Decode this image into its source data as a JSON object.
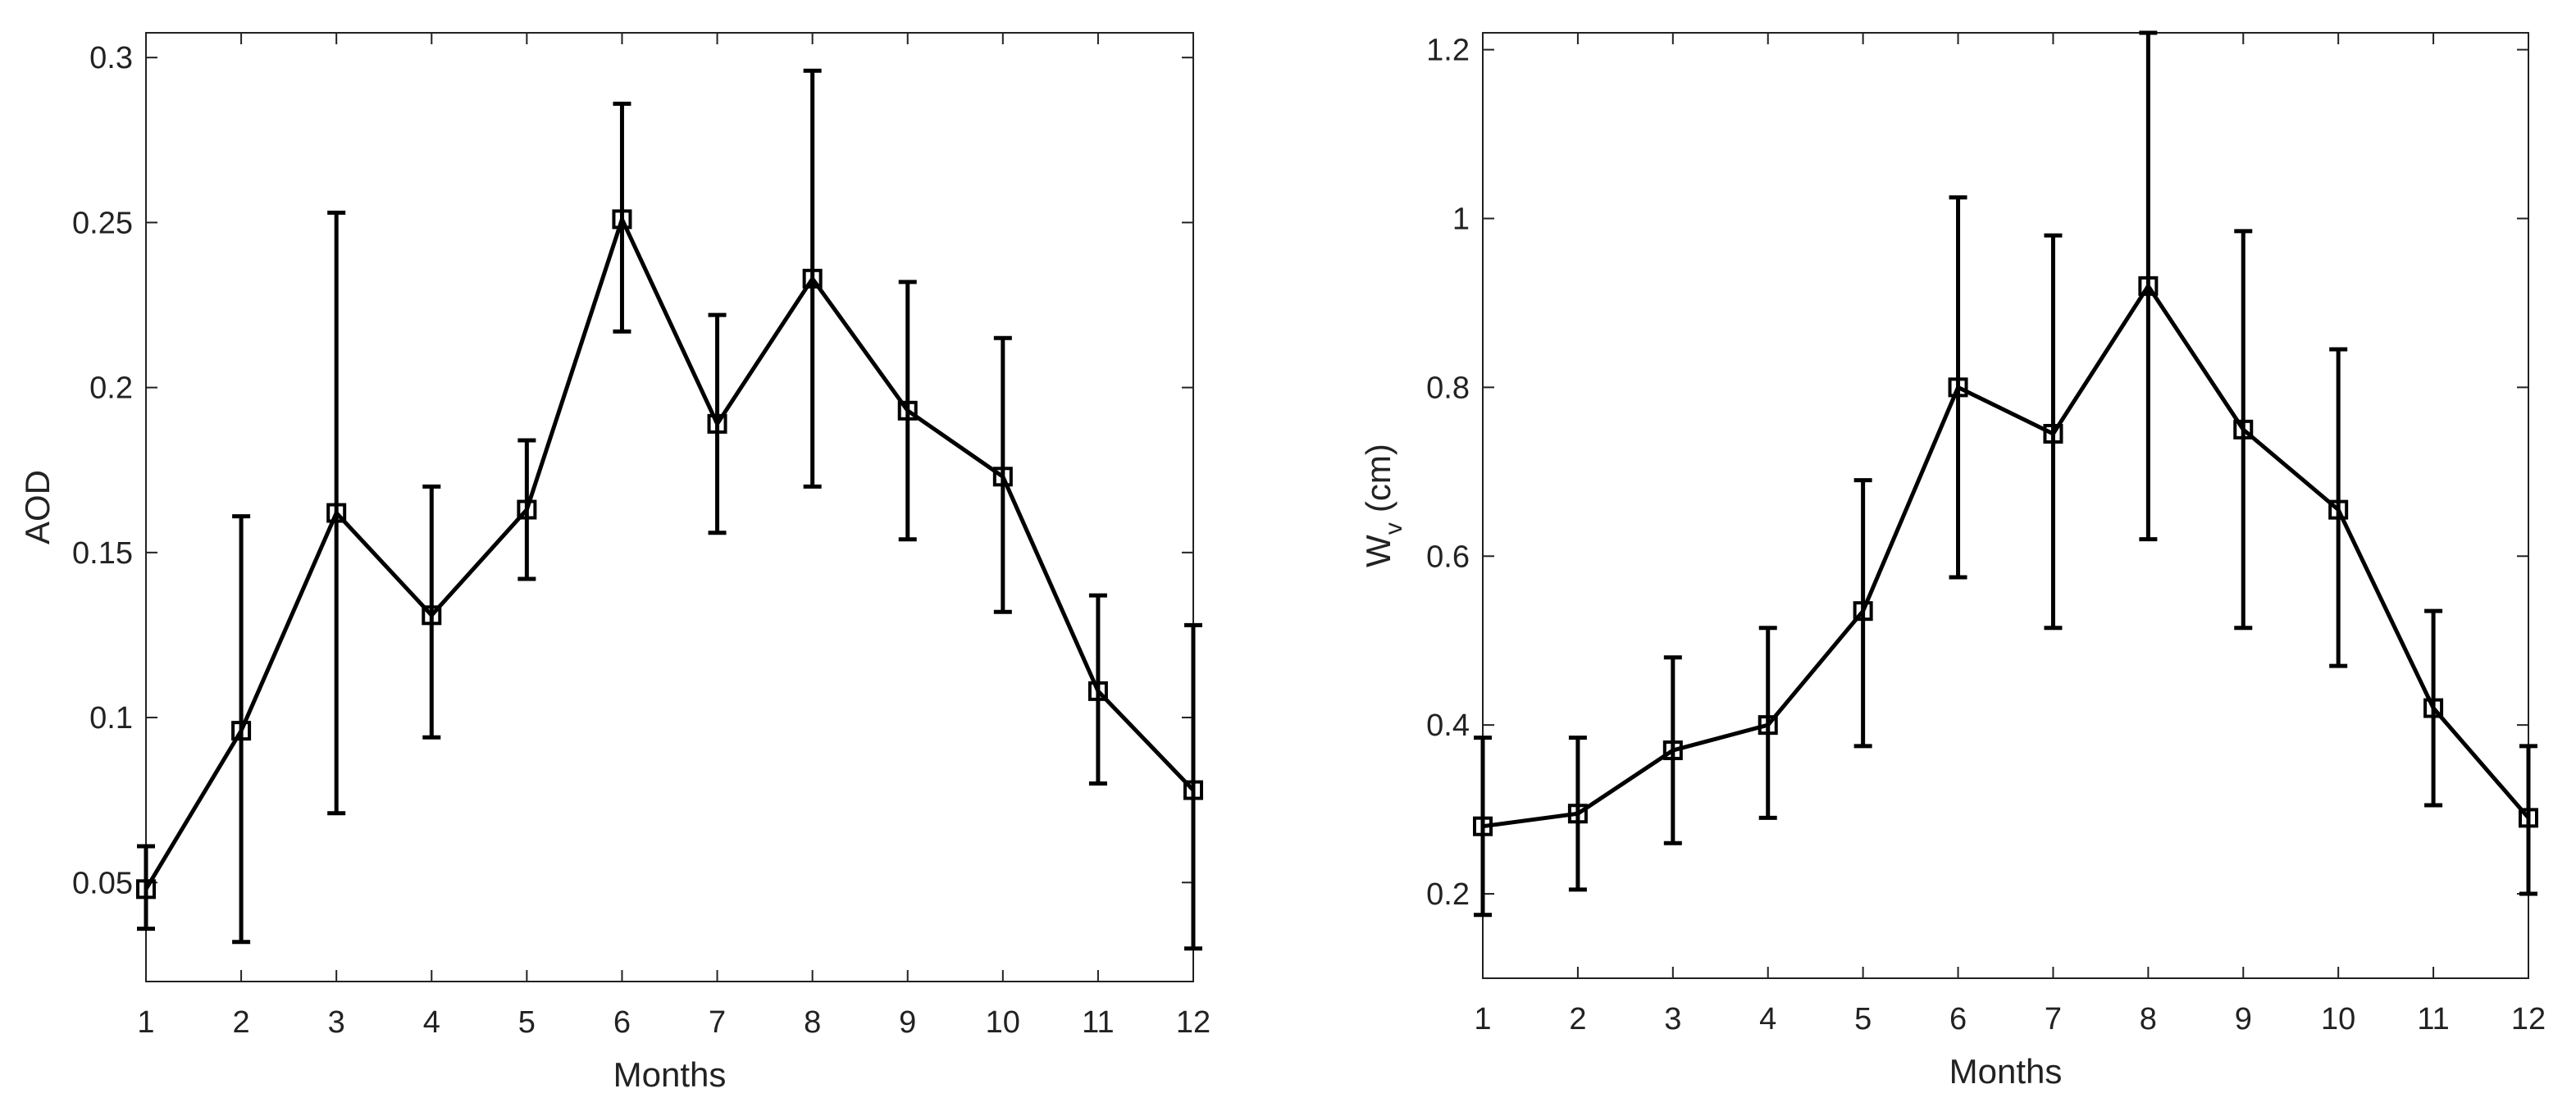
{
  "colors": {
    "series": "#000000",
    "axes": "#222222",
    "background": "#ffffff"
  },
  "chart_data": [
    {
      "type": "line",
      "title": "",
      "xlabel": "Months",
      "ylabel": "AOD",
      "xlim": [
        1,
        12
      ],
      "ylim": [
        0.02,
        0.3075
      ],
      "grid": false,
      "marker": "square",
      "x": [
        1,
        2,
        3,
        4,
        5,
        6,
        7,
        8,
        9,
        10,
        11,
        12
      ],
      "x_ticks": [
        "1",
        "2",
        "3",
        "4",
        "5",
        "6",
        "7",
        "8",
        "9",
        "10",
        "11",
        "12"
      ],
      "y_ticks": [
        0.05,
        0.1,
        0.15,
        0.2,
        0.25,
        0.3
      ],
      "y_tick_labels": [
        "0.05",
        "0.1",
        "0.15",
        "0.2",
        "0.25",
        "0.3"
      ],
      "series": [
        {
          "values": [
            0.048,
            0.096,
            0.162,
            0.131,
            0.163,
            0.251,
            0.189,
            0.233,
            0.193,
            0.173,
            0.108,
            0.078
          ],
          "err_low": [
            0.036,
            0.032,
            0.071,
            0.094,
            0.142,
            0.217,
            0.156,
            0.17,
            0.154,
            0.132,
            0.08,
            0.03
          ],
          "err_high": [
            0.061,
            0.161,
            0.253,
            0.17,
            0.184,
            0.286,
            0.222,
            0.296,
            0.232,
            0.215,
            0.137,
            0.128
          ]
        }
      ]
    },
    {
      "type": "line",
      "title": "",
      "xlabel": "Months",
      "ylabel": "W",
      "ylabel_sub": "v",
      "ylabel_unit": "(cm)",
      "xlim": [
        1,
        12
      ],
      "ylim": [
        0.1,
        1.22
      ],
      "grid": false,
      "marker": "square",
      "x": [
        1,
        2,
        3,
        4,
        5,
        6,
        7,
        8,
        9,
        10,
        11,
        12
      ],
      "x_ticks": [
        "1",
        "2",
        "3",
        "4",
        "5",
        "6",
        "7",
        "8",
        "9",
        "10",
        "11",
        "12"
      ],
      "y_ticks": [
        0.2,
        0.4,
        0.6,
        0.8,
        1.0,
        1.2
      ],
      "y_tick_labels": [
        "0.2",
        "0.4",
        "0.6",
        "0.8",
        "1",
        "1.2"
      ],
      "series": [
        {
          "values": [
            0.28,
            0.295,
            0.37,
            0.4,
            0.535,
            0.8,
            0.745,
            0.92,
            0.75,
            0.655,
            0.42,
            0.29
          ],
          "err_low": [
            0.175,
            0.205,
            0.26,
            0.29,
            0.375,
            0.575,
            0.515,
            0.62,
            0.515,
            0.47,
            0.305,
            0.2
          ],
          "err_high": [
            0.385,
            0.385,
            0.48,
            0.515,
            0.69,
            1.025,
            0.98,
            1.22,
            0.985,
            0.845,
            0.535,
            0.375
          ]
        }
      ]
    }
  ]
}
